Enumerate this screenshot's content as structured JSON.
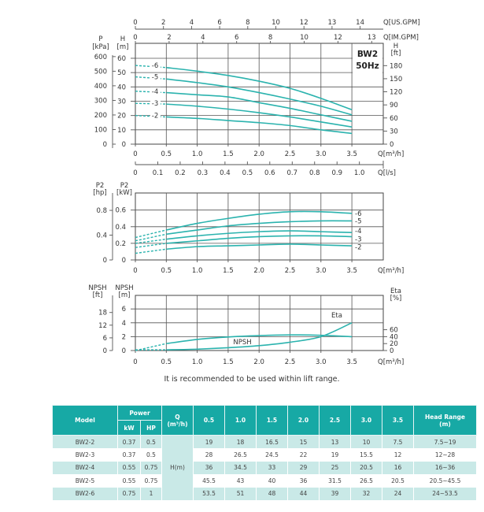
{
  "chart_data": [
    {
      "type": "line",
      "badge": [
        "BW2",
        "50Hz"
      ],
      "x": [
        0,
        0.5,
        1.0,
        1.5,
        2.0,
        2.5,
        3.0,
        3.5
      ],
      "x_ticks": [
        "0",
        "0.5",
        "1.0",
        "1.5",
        "2.0",
        "2.5",
        "3.0",
        "3.5"
      ],
      "xlabel": "Q[m³/h]",
      "xlim": [
        0,
        4
      ],
      "ylabel": [
        "H",
        "[m]"
      ],
      "ylim": [
        0,
        70
      ],
      "y_ticks": [
        "0",
        "10",
        "20",
        "30",
        "40",
        "50",
        "60"
      ],
      "y2_label": [
        "P",
        "[kPa]"
      ],
      "y2_ticks": [
        "0",
        "100",
        "200",
        "300",
        "400",
        "500",
        "600"
      ],
      "y3_label": [
        "H",
        "[ft]"
      ],
      "y3_ticks": [
        "0",
        "30",
        "60",
        "90",
        "120",
        "150",
        "180"
      ],
      "top_axis_us": {
        "label": "Q[US.GPM]",
        "ticks": [
          "0",
          "2",
          "4",
          "6",
          "8",
          "10",
          "12",
          "13",
          "14"
        ]
      },
      "top_axis_im": {
        "label": "Q[IM.GPM]",
        "ticks": [
          "0",
          "2",
          "4",
          "6",
          "8",
          "10",
          "12",
          "13"
        ]
      },
      "bottom_axis_ls": {
        "label": "Q[l/s]",
        "ticks": [
          "0",
          "0.1",
          "0.2",
          "0.3",
          "0.4",
          "0.5",
          "0.6",
          "0.7",
          "0.8",
          "0.9",
          "1.0"
        ]
      },
      "grid": true,
      "dashed_segment": [
        0,
        0.5
      ],
      "series": [
        {
          "name": "-6",
          "values": [
            55,
            53.5,
            51,
            48,
            44,
            39,
            32,
            24
          ]
        },
        {
          "name": "-5",
          "values": [
            47,
            45.5,
            43,
            40,
            36,
            31.5,
            26.5,
            20.5
          ]
        },
        {
          "name": "-4",
          "values": [
            37,
            36,
            34.5,
            33,
            29,
            25,
            20.5,
            16
          ]
        },
        {
          "name": "-3",
          "values": [
            28.5,
            28,
            26.5,
            24.5,
            22,
            19,
            15.5,
            12
          ]
        },
        {
          "name": "-2",
          "values": [
            20,
            19,
            18,
            16.5,
            15,
            13,
            10,
            7.5
          ]
        }
      ]
    },
    {
      "type": "line",
      "x": [
        0,
        0.5,
        1.0,
        1.5,
        2.0,
        2.5,
        3.0,
        3.5
      ],
      "x_ticks": [
        "0",
        "0.5",
        "1.0",
        "1.5",
        "2.0",
        "2.5",
        "3.0",
        "3.5"
      ],
      "xlabel": "Q[m³/h]",
      "xlim": [
        0,
        4
      ],
      "ylabel": [
        "P2",
        "[kW]"
      ],
      "ylim": [
        0,
        0.8
      ],
      "y_ticks": [
        "0",
        "0.2",
        "0.4",
        "0.6"
      ],
      "y2_label": [
        "P2",
        "[hp]"
      ],
      "y2_ticks": [
        "0",
        "0.4",
        "0.8"
      ],
      "grid": true,
      "dashed_segment": [
        0,
        0.5
      ],
      "series": [
        {
          "name": "-6",
          "values": [
            0.27,
            0.36,
            0.44,
            0.5,
            0.55,
            0.58,
            0.58,
            0.56
          ]
        },
        {
          "name": "-5",
          "values": [
            0.23,
            0.31,
            0.36,
            0.41,
            0.44,
            0.46,
            0.47,
            0.47
          ]
        },
        {
          "name": "-4",
          "values": [
            0.2,
            0.25,
            0.29,
            0.32,
            0.34,
            0.35,
            0.34,
            0.33
          ]
        },
        {
          "name": "-3",
          "values": [
            0.15,
            0.2,
            0.23,
            0.26,
            0.28,
            0.29,
            0.29,
            0.28
          ]
        },
        {
          "name": "-2",
          "values": [
            0.08,
            0.13,
            0.16,
            0.17,
            0.18,
            0.19,
            0.18,
            0.17
          ]
        }
      ]
    },
    {
      "type": "line",
      "x": [
        0,
        0.5,
        1.0,
        1.5,
        2.0,
        2.5,
        3.0,
        3.5
      ],
      "x_ticks": [
        "0",
        "0.5",
        "1.0",
        "1.5",
        "2.0",
        "2.5",
        "3.0",
        "3.5"
      ],
      "xlabel": "Q[m³/h]",
      "xlim": [
        0,
        4
      ],
      "ylabel": [
        "NPSH",
        "[m]"
      ],
      "ylim": [
        0,
        8
      ],
      "y_ticks": [
        "0",
        "2",
        "4",
        "6"
      ],
      "y2_label": [
        "NPSH",
        "[ft]"
      ],
      "y2_ticks": [
        "0",
        "6",
        "12",
        "18"
      ],
      "y3_label": [
        "Eta",
        "[%]"
      ],
      "y3_ticks": [
        "0",
        "20",
        "40",
        "60"
      ],
      "y3lim": [
        0,
        80
      ],
      "grid": true,
      "dashed_segment": [
        0,
        0.5
      ],
      "series": [
        {
          "name": "Eta",
          "axis": "right",
          "values": [
            0,
            20,
            32,
            39,
            43,
            45,
            44,
            40
          ]
        },
        {
          "name": "NPSH",
          "axis": "left",
          "values": [
            0.1,
            0.1,
            0.2,
            0.4,
            0.7,
            1.2,
            2.0,
            4.0
          ]
        }
      ],
      "note": "It is recommended to be used within lift range."
    }
  ],
  "table": {
    "headers": {
      "model": "Model",
      "power": "Power",
      "kw": "kW",
      "hp": "HP",
      "q": "Q",
      "q_unit": "(m³/h)",
      "head_range": "Head Range",
      "head_unit": "(m)"
    },
    "flows": [
      "0.5",
      "1.0",
      "1.5",
      "2.0",
      "2.5",
      "3.0",
      "3.5"
    ],
    "h_label": "H(m)",
    "rows": [
      {
        "model": "BW2-2",
        "kw": "0.37",
        "hp": "0.5",
        "h": [
          "19",
          "18",
          "16.5",
          "15",
          "13",
          "10",
          "7.5"
        ],
        "range": "7.5~19"
      },
      {
        "model": "BW2-3",
        "kw": "0.37",
        "hp": "0.5",
        "h": [
          "28",
          "26.5",
          "24.5",
          "22",
          "19",
          "15.5",
          "12"
        ],
        "range": "12~28"
      },
      {
        "model": "BW2-4",
        "kw": "0.55",
        "hp": "0.75",
        "h": [
          "36",
          "34.5",
          "33",
          "29",
          "25",
          "20.5",
          "16"
        ],
        "range": "16~36"
      },
      {
        "model": "BW2-5",
        "kw": "0.55",
        "hp": "0.75",
        "h": [
          "45.5",
          "43",
          "40",
          "36",
          "31.5",
          "26.5",
          "20.5"
        ],
        "range": "20.5~45.5"
      },
      {
        "model": "BW2-6",
        "kw": "0.75",
        "hp": "1",
        "h": [
          "53.5",
          "51",
          "48",
          "44",
          "39",
          "32",
          "24"
        ],
        "range": "24~53.5"
      }
    ]
  },
  "colors": {
    "curve": "#2bb3ae",
    "table_header": "#17a9a5",
    "table_alt_row": "#c9e9e7"
  }
}
